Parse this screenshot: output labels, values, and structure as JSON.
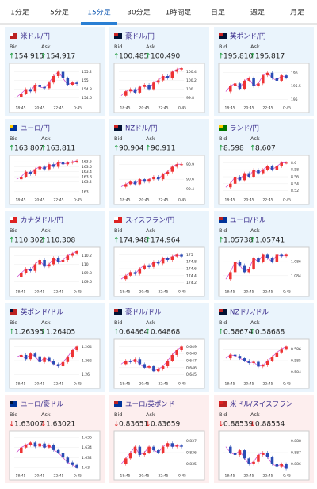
{
  "tabs": [
    "1分足",
    "5分足",
    "15分足",
    "30分足",
    "1時間足",
    "日足",
    "週足",
    "月足"
  ],
  "active_tab": "15分足",
  "labels": {
    "bid": "Bid",
    "ask": "Ask"
  },
  "time_labels": [
    "18:45",
    "20:45",
    "22:45",
    "0:45"
  ],
  "cards": [
    {
      "name": "米ドル/円",
      "arrow": "↑",
      "bid": "154.915",
      "ask": "154.917",
      "ylim": [
        154.5,
        155.3
      ],
      "yticks": [
        155.2,
        155,
        154.8,
        154.6
      ],
      "closes": [
        154.62,
        154.7,
        154.8,
        154.75,
        154.9,
        154.85,
        154.82,
        154.95,
        155.1,
        155.2,
        155.05,
        154.9,
        154.95,
        154.92
      ]
    },
    {
      "name": "豪ドル/円",
      "arrow": "↑",
      "bid": "100.485",
      "ask": "100.490",
      "ylim": [
        99.7,
        100.5
      ],
      "yticks": [
        100.4,
        100.2,
        100,
        99.8
      ],
      "closes": [
        99.85,
        99.95,
        100.0,
        99.92,
        100.05,
        100.1,
        100.0,
        100.15,
        100.2,
        100.3,
        100.25,
        100.4,
        100.45,
        100.48
      ]
    },
    {
      "name": "英ポンド/円",
      "arrow": "↑",
      "bid": "195.810",
      "ask": "195.817",
      "ylim": [
        194.9,
        196.2
      ],
      "yticks": [
        196,
        195.5,
        195
      ],
      "closes": [
        195.3,
        195.5,
        195.6,
        195.4,
        195.7,
        195.8,
        195.5,
        195.6,
        195.9,
        196.0,
        195.8,
        195.7,
        195.9,
        195.81
      ]
    },
    {
      "name": "ユーロ/円",
      "arrow": "↑",
      "bid": "163.807",
      "ask": "163.811",
      "ylim": [
        162.95,
        163.65
      ],
      "yticks": [
        163.6,
        163.5,
        163.4,
        163.3,
        163.2,
        163
      ],
      "closes": [
        163.25,
        163.3,
        163.4,
        163.35,
        163.45,
        163.5,
        163.45,
        163.55,
        163.5,
        163.6,
        163.55,
        163.58,
        163.6,
        163.62
      ]
    },
    {
      "name": "NZドル/円",
      "arrow": "↑",
      "bid": "90.904",
      "ask": "90.911",
      "ylim": [
        90.3,
        91.0
      ],
      "yticks": [
        90.9,
        90.6,
        90.4
      ],
      "closes": [
        90.45,
        90.5,
        90.55,
        90.5,
        90.6,
        90.55,
        90.6,
        90.65,
        90.6,
        90.7,
        90.75,
        90.85,
        90.9,
        90.9
      ]
    },
    {
      "name": "ランド/円",
      "arrow": "↑",
      "bid": "8.598",
      "ask": "8.607",
      "ylim": [
        8.51,
        8.61
      ],
      "yticks": [
        8.6,
        8.58,
        8.56,
        8.54,
        8.52
      ],
      "closes": [
        8.53,
        8.54,
        8.56,
        8.55,
        8.57,
        8.56,
        8.58,
        8.57,
        8.58,
        8.59,
        8.58,
        8.59,
        8.6,
        8.6
      ]
    },
    {
      "name": "カナダドル/円",
      "arrow": "↑",
      "bid": "110.302",
      "ask": "110.308",
      "ylim": [
        109.5,
        110.3
      ],
      "yticks": [
        110.2,
        110,
        109.8,
        109.6
      ],
      "closes": [
        109.7,
        109.8,
        109.9,
        109.85,
        110.0,
        110.1,
        109.95,
        110.0,
        110.15,
        110.05,
        110.1,
        110.2,
        110.25,
        110.3
      ]
    },
    {
      "name": "スイスフラン/円",
      "arrow": "↑",
      "bid": "174.948",
      "ask": "174.964",
      "ylim": [
        174.1,
        175.1
      ],
      "yticks": [
        175,
        174.8,
        174.6,
        174.4,
        174.2
      ],
      "closes": [
        174.3,
        174.4,
        174.5,
        174.45,
        174.6,
        174.7,
        174.65,
        174.8,
        174.75,
        174.9,
        174.85,
        174.95,
        175.0,
        174.95
      ]
    },
    {
      "name": "ユーロ/ドル",
      "arrow": "↑",
      "bid": "1.05738",
      "ask": "1.05741",
      "ylim": [
        1.0825,
        1.0875
      ],
      "yticks": [
        1.086,
        1.084
      ],
      "closes": [
        1.0835,
        1.0845,
        1.086,
        1.0855,
        1.0845,
        1.085,
        1.0865,
        1.086,
        1.087,
        1.0865,
        1.086,
        1.087,
        1.0868,
        1.087
      ]
    },
    {
      "name": "英ポンド/ドル",
      "arrow": "↑",
      "bid": "1.26395",
      "ask": "1.26405",
      "ylim": [
        1.2595,
        1.2645
      ],
      "yticks": [
        1.264,
        1.262,
        1.26
      ],
      "closes": [
        1.2625,
        1.2628,
        1.2622,
        1.263,
        1.2626,
        1.2618,
        1.2624,
        1.262,
        1.2615,
        1.2612,
        1.2618,
        1.2625,
        1.2635,
        1.264
      ]
    },
    {
      "name": "豪ドル/ドル",
      "arrow": "↑",
      "bid": "0.64864",
      "ask": "0.64868",
      "ylim": [
        0.6445,
        0.6495
      ],
      "yticks": [
        0.649,
        0.648,
        0.647,
        0.646,
        0.645
      ],
      "closes": [
        0.6465,
        0.647,
        0.6468,
        0.6472,
        0.6465,
        0.646,
        0.6462,
        0.6455,
        0.6458,
        0.6462,
        0.647,
        0.6478,
        0.6485,
        0.649
      ]
    },
    {
      "name": "NZドル/ドル",
      "arrow": "↑",
      "bid": "0.58674",
      "ask": "0.58688",
      "ylim": [
        0.5835,
        0.5865
      ],
      "yticks": [
        0.586,
        0.585,
        0.584
      ],
      "closes": [
        0.5852,
        0.5855,
        0.5854,
        0.5852,
        0.585,
        0.5848,
        0.5849,
        0.5845,
        0.5846,
        0.585,
        0.5853,
        0.5857,
        0.586,
        0.5862
      ]
    },
    {
      "name": "ユーロ/豪ドル",
      "arrow": "↓",
      "bid": "1.63007",
      "ask": "1.63021",
      "ylim": [
        1.6295,
        1.6365
      ],
      "yticks": [
        1.636,
        1.634,
        1.632,
        1.63
      ],
      "closes": [
        1.633,
        1.634,
        1.6345,
        1.635,
        1.6342,
        1.6348,
        1.634,
        1.6345,
        1.6335,
        1.633,
        1.632,
        1.631,
        1.6305,
        1.63
      ]
    },
    {
      "name": "ユーロ/英ポンド",
      "arrow": "↓",
      "bid": "0.83651",
      "ask": "0.83659",
      "ylim": [
        0.8345,
        0.8375
      ],
      "yticks": [
        0.837,
        0.836,
        0.835
      ],
      "closes": [
        0.835,
        0.8355,
        0.836,
        0.8365,
        0.8358,
        0.836,
        0.8365,
        0.8362,
        0.836,
        0.8365,
        0.8368,
        0.8365,
        0.8366,
        0.8365
      ]
    },
    {
      "name": "米ドル/スイスフラン",
      "arrow": "↓",
      "bid": "0.88539",
      "ask": "0.88554",
      "ylim": [
        0.8855,
        0.8885
      ],
      "yticks": [
        0.888,
        0.887,
        0.886
      ],
      "closes": [
        0.8875,
        0.887,
        0.8868,
        0.8872,
        0.8865,
        0.886,
        0.8862,
        0.8868,
        0.887,
        0.8866,
        0.886,
        0.8858,
        0.886,
        0.8856
      ]
    }
  ]
}
